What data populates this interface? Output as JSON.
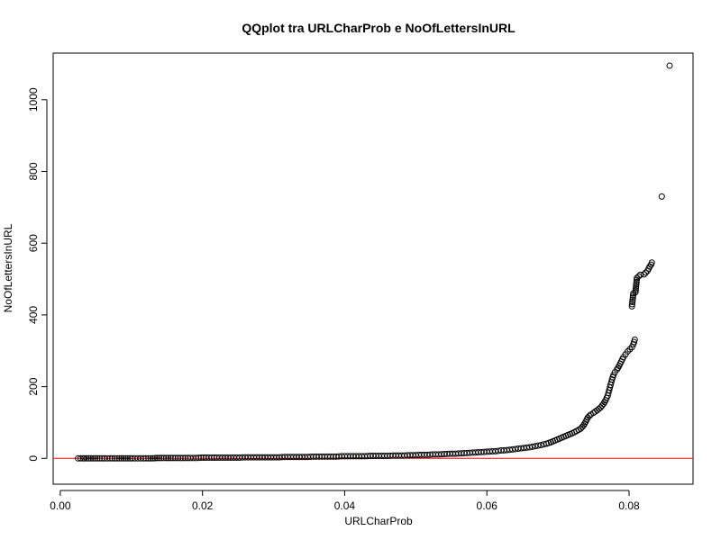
{
  "chart_data": {
    "type": "scatter",
    "title": "QQplot tra URLCharProb e NoOfLettersInURL",
    "xlabel": "URLCharProb",
    "ylabel": "NoOfLettersInURL",
    "xlim": [
      -0.001,
      0.089
    ],
    "ylim": [
      -72,
      1130
    ],
    "x_ticks": [
      0.0,
      0.02,
      0.04,
      0.06,
      0.08
    ],
    "x_tick_labels": [
      "0.00",
      "0.02",
      "0.04",
      "0.06",
      "0.08"
    ],
    "y_ticks": [
      0,
      200,
      400,
      600,
      800,
      1000
    ],
    "y_tick_labels": [
      "0",
      "200",
      "400",
      "600",
      "800",
      "1000"
    ],
    "grid": false,
    "reference_line": {
      "y": 0,
      "color": "#ff0000"
    },
    "marker_color": "#000000",
    "marker": "open-circle",
    "points": [
      [
        0.0025,
        0
      ],
      [
        0.0032,
        0
      ],
      [
        0.0034,
        0
      ],
      [
        0.0043,
        0
      ],
      [
        0.0052,
        0
      ],
      [
        0.0062,
        0
      ],
      [
        0.007,
        0
      ],
      [
        0.008,
        0
      ],
      [
        0.0092,
        0
      ],
      [
        0.0101,
        0
      ],
      [
        0.0109,
        0
      ],
      [
        0.0117,
        0
      ],
      [
        0.0124,
        0
      ],
      [
        0.013,
        0
      ],
      [
        0.0136,
        1
      ],
      [
        0.0142,
        1
      ],
      [
        0.0149,
        1
      ],
      [
        0.0155,
        1
      ],
      [
        0.0162,
        1
      ],
      [
        0.0169,
        1
      ],
      [
        0.0176,
        1
      ],
      [
        0.0183,
        1
      ],
      [
        0.0191,
        1
      ],
      [
        0.0198,
        2
      ],
      [
        0.0205,
        2
      ],
      [
        0.0213,
        2
      ],
      [
        0.022,
        2
      ],
      [
        0.0228,
        2
      ],
      [
        0.0236,
        2
      ],
      [
        0.0244,
        2
      ],
      [
        0.0252,
        2
      ],
      [
        0.026,
        3
      ],
      [
        0.0268,
        3
      ],
      [
        0.0276,
        3
      ],
      [
        0.0284,
        3
      ],
      [
        0.0292,
        3
      ],
      [
        0.03,
        3
      ],
      [
        0.0308,
        3
      ],
      [
        0.0316,
        4
      ],
      [
        0.0324,
        4
      ],
      [
        0.0332,
        4
      ],
      [
        0.034,
        4
      ],
      [
        0.0348,
        4
      ],
      [
        0.0356,
        5
      ],
      [
        0.0364,
        5
      ],
      [
        0.0372,
        5
      ],
      [
        0.038,
        5
      ],
      [
        0.0388,
        5
      ],
      [
        0.0396,
        6
      ],
      [
        0.0404,
        6
      ],
      [
        0.0412,
        6
      ],
      [
        0.042,
        6
      ],
      [
        0.0428,
        6
      ],
      [
        0.0436,
        7
      ],
      [
        0.0444,
        7
      ],
      [
        0.0452,
        7
      ],
      [
        0.046,
        7
      ],
      [
        0.0468,
        8
      ],
      [
        0.0476,
        8
      ],
      [
        0.0484,
        8
      ],
      [
        0.0492,
        9
      ],
      [
        0.05,
        9
      ],
      [
        0.0508,
        10
      ],
      [
        0.0516,
        10
      ],
      [
        0.0524,
        11
      ],
      [
        0.0532,
        11
      ],
      [
        0.054,
        12
      ],
      [
        0.0548,
        13
      ],
      [
        0.0556,
        13
      ],
      [
        0.0564,
        14
      ],
      [
        0.0572,
        15
      ],
      [
        0.058,
        16
      ],
      [
        0.0588,
        17
      ],
      [
        0.0596,
        18
      ],
      [
        0.0604,
        19
      ],
      [
        0.0612,
        20
      ],
      [
        0.062,
        22
      ],
      [
        0.0628,
        23
      ],
      [
        0.0636,
        25
      ],
      [
        0.0644,
        27
      ],
      [
        0.0652,
        29
      ],
      [
        0.066,
        31
      ],
      [
        0.0668,
        34
      ],
      [
        0.0676,
        37
      ],
      [
        0.0684,
        41
      ],
      [
        0.069,
        45
      ],
      [
        0.0696,
        50
      ],
      [
        0.0702,
        55
      ],
      [
        0.0708,
        60
      ],
      [
        0.0714,
        65
      ],
      [
        0.072,
        70
      ],
      [
        0.0726,
        76
      ],
      [
        0.0732,
        83
      ],
      [
        0.0736,
        92
      ],
      [
        0.0739,
        102
      ],
      [
        0.0742,
        114
      ],
      [
        0.0746,
        122
      ],
      [
        0.075,
        127
      ],
      [
        0.0755,
        134
      ],
      [
        0.076,
        142
      ],
      [
        0.0764,
        152
      ],
      [
        0.0767,
        162
      ],
      [
        0.077,
        175
      ],
      [
        0.0772,
        190
      ],
      [
        0.0774,
        205
      ],
      [
        0.0776,
        220
      ],
      [
        0.0778,
        232
      ],
      [
        0.078,
        240
      ],
      [
        0.0783,
        248
      ],
      [
        0.0786,
        258
      ],
      [
        0.0789,
        270
      ],
      [
        0.0792,
        282
      ],
      [
        0.0795,
        290
      ],
      [
        0.0798,
        298
      ],
      [
        0.0801,
        304
      ],
      [
        0.0804,
        310
      ],
      [
        0.0806,
        318
      ],
      [
        0.0808,
        331
      ],
      [
        0.0804,
        424
      ],
      [
        0.0806,
        460
      ],
      [
        0.0809,
        463
      ],
      [
        0.0811,
        503
      ],
      [
        0.0816,
        512
      ],
      [
        0.0821,
        513
      ],
      [
        0.0826,
        523
      ],
      [
        0.0829,
        535
      ],
      [
        0.0831,
        540
      ],
      [
        0.0832,
        546
      ],
      [
        0.0846,
        730
      ],
      [
        0.0857,
        1095
      ]
    ]
  }
}
